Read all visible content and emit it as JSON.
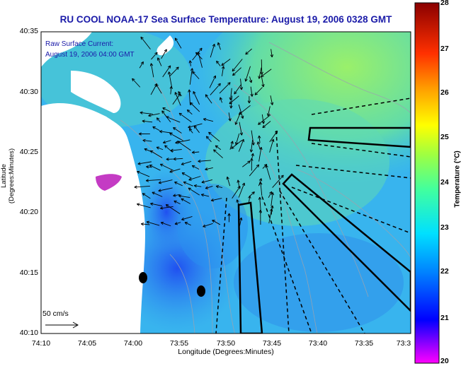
{
  "title": "RU COOL  NOAA-17  Sea Surface Temperature:  August 19, 2006 0328 GMT",
  "current_note": {
    "line1": "Raw Surface Current:",
    "line2": "August 19, 2006 04:00 GMT"
  },
  "axes": {
    "x_title": "Longitude (Degrees:Minutes)",
    "y_title": "Latitude (Degrees:Minutes)",
    "x_ticks": [
      "74:10",
      "74:05",
      "74:00",
      "73:55",
      "73:50",
      "73:45",
      "73:40",
      "73:35",
      "73:3"
    ],
    "y_ticks": [
      "40:35",
      "40:30",
      "40:25",
      "40:20",
      "40:15",
      "40:10"
    ]
  },
  "colorbar": {
    "title": "Temperature (°C)",
    "ticks": [
      "28",
      "27",
      "26",
      "25",
      "24",
      "23",
      "22",
      "21",
      "20"
    ],
    "range": [
      20,
      28
    ],
    "colors": [
      "#ff00ff",
      "#0000ff",
      "#00a0ff",
      "#00ffff",
      "#40ff80",
      "#c0ff00",
      "#ffff00",
      "#ff8000",
      "#ff0000",
      "#800000"
    ]
  },
  "scale_arrow": {
    "label": "50 cm/s"
  },
  "map_colors": {
    "ocean": "#3ab0f0",
    "warm_ocean": "#5dd5a8",
    "land": "#ffffff",
    "cold": "#3060f0"
  }
}
